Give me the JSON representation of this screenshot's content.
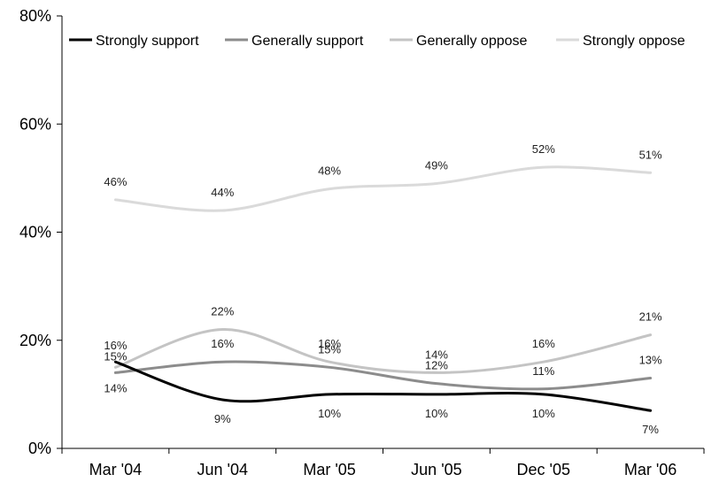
{
  "chart_data": {
    "type": "line",
    "categories": [
      "Mar '04",
      "Jun '04",
      "Mar '05",
      "Jun '05",
      "Dec '05",
      "Mar '06"
    ],
    "ylim": [
      0,
      80
    ],
    "yticks": [
      "0%",
      "20%",
      "40%",
      "60%",
      "80%"
    ],
    "yunit": "%",
    "grid": false,
    "legend": "top",
    "series": [
      {
        "name": "Strongly support",
        "values": [
          16,
          9,
          10,
          10,
          10,
          7
        ],
        "color": "#000000"
      },
      {
        "name": "Generally support",
        "values": [
          14,
          16,
          15,
          12,
          11,
          13
        ],
        "color": "#8c8c8c"
      },
      {
        "name": "Generally oppose",
        "values": [
          15,
          22,
          16,
          14,
          16,
          21
        ],
        "color": "#c4c4c4"
      },
      {
        "name": "Strongly oppose",
        "values": [
          46,
          44,
          48,
          49,
          52,
          51
        ],
        "color": "#dadada"
      }
    ]
  }
}
